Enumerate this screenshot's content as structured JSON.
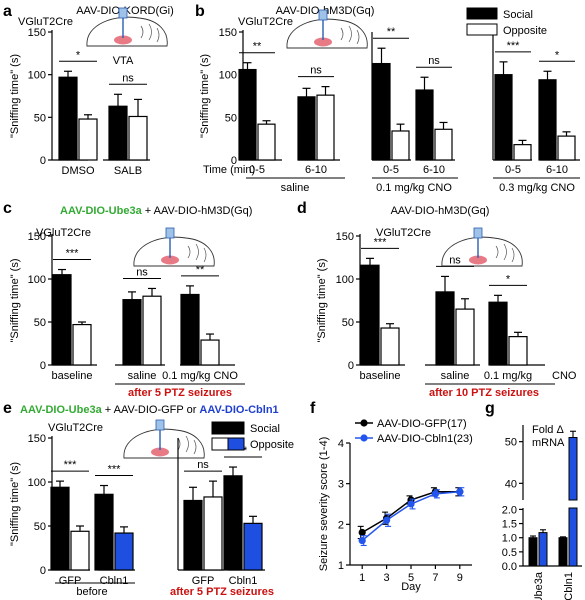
{
  "colors": {
    "social": "#000000",
    "opposite": "#ffffff",
    "cbln1": "#1f4fe0",
    "sig_red": "#cc1111",
    "green": "#33aa33",
    "blue_text": "#1f3fd0",
    "brain_region": "#e87a86",
    "gfp_line": "#000000",
    "cbln1_line": "#2255ee"
  },
  "legend_b": {
    "social": "Social",
    "opposite": "Opposite"
  },
  "legend_e": {
    "social": "Social",
    "opposite": "Opposite"
  },
  "panels": {
    "a": {
      "letter": "a",
      "title": "AAV-DIO-KORD(Gi)",
      "subtitle": "VGluT2Cre",
      "region": "VTA"
    },
    "b": {
      "letter": "b",
      "title": "AAV-DIO-hM3D(Gq)",
      "subtitle": "VGluT2Cre",
      "time_label": "Time (min)"
    },
    "c": {
      "letter": "c",
      "title_green": "AAV-DIO-Ube3a",
      "title_rest": " + AAV-DIO-hM3D(Gq)",
      "subtitle": "VGluT2Cre",
      "red_note": "after 5 PTZ seizures"
    },
    "d": {
      "letter": "d",
      "title": "AAV-DIO-hM3D(Gq)",
      "subtitle": "VGluT2Cre",
      "red_note": "after 10 PTZ seizures"
    },
    "e": {
      "letter": "e",
      "title_green": "AAV-DIO-Ube3a",
      "title_mid": " + AAV-DIO-GFP or ",
      "title_blue": "AAV-DIO-Cbln1",
      "subtitle": "VGluT2Cre",
      "group_before": "before",
      "red_note": "after 5 PTZ seizures"
    },
    "f": {
      "letter": "f"
    },
    "g": {
      "letter": "g",
      "inset": [
        "Fold Δ",
        "mRNA"
      ]
    }
  },
  "chart_data": [
    {
      "id": "a",
      "type": "bar",
      "ylabel": "\"Sniffing time\" (s)",
      "ylim": [
        0,
        150
      ],
      "yticks": [
        0,
        50,
        100,
        150
      ],
      "categories": [
        "DMSO",
        "SALB"
      ],
      "series": [
        {
          "name": "Social",
          "values": [
            97,
            63
          ],
          "err": [
            7,
            14
          ]
        },
        {
          "name": "Opposite",
          "values": [
            48,
            51
          ],
          "err": [
            5,
            20
          ]
        }
      ],
      "sig": [
        "*",
        "ns"
      ]
    },
    {
      "id": "b",
      "type": "bar",
      "ylabel": "\"Sniffing time\" (s)",
      "ylim": [
        0,
        150
      ],
      "yticks": [
        0,
        50,
        100,
        150
      ],
      "categories": [
        "0-5",
        "6-10",
        "0-5",
        "6-10",
        "0-5",
        "6-10"
      ],
      "group_labels": [
        "saline",
        "0.1 mg/kg CNO",
        "0.3 mg/kg CNO"
      ],
      "series": [
        {
          "name": "Social",
          "values": [
            106,
            74,
            113,
            82,
            100,
            94
          ],
          "err": [
            8,
            10,
            18,
            15,
            15,
            10
          ]
        },
        {
          "name": "Opposite",
          "values": [
            42,
            76,
            34,
            36,
            18,
            28
          ],
          "err": [
            4,
            10,
            8,
            8,
            5,
            5
          ]
        }
      ],
      "sig": [
        "**",
        "ns",
        "**",
        "ns",
        "***",
        "*"
      ]
    },
    {
      "id": "c",
      "type": "bar",
      "ylabel": "\"Sniffing time\" (s)",
      "ylim": [
        0,
        150
      ],
      "yticks": [
        0,
        50,
        100,
        150
      ],
      "categories": [
        "baseline",
        "saline",
        "0.1 mg/kg CNO"
      ],
      "unit_after": "",
      "series": [
        {
          "name": "Social",
          "values": [
            105,
            76,
            82
          ],
          "err": [
            6,
            9,
            10
          ]
        },
        {
          "name": "Opposite",
          "values": [
            47,
            80,
            29
          ],
          "err": [
            3,
            9,
            7
          ]
        }
      ],
      "sig": [
        "***",
        "ns",
        "**"
      ]
    },
    {
      "id": "d",
      "type": "bar",
      "ylabel": "\"Sniffing time\" (s)",
      "ylim": [
        0,
        150
      ],
      "yticks": [
        0,
        50,
        100,
        150
      ],
      "categories": [
        "baseline",
        "saline",
        "0.1 mg/kg"
      ],
      "unit_after": "CNO",
      "series": [
        {
          "name": "Social",
          "values": [
            116,
            85,
            73
          ],
          "err": [
            8,
            18,
            8
          ]
        },
        {
          "name": "Opposite",
          "values": [
            43,
            65,
            33
          ],
          "err": [
            5,
            12,
            5
          ]
        }
      ],
      "sig": [
        "***",
        "ns",
        "*"
      ]
    },
    {
      "id": "e",
      "type": "bar",
      "ylabel": "\"Sniffing time\" (s)",
      "ylim": [
        0,
        150
      ],
      "yticks": [
        0,
        50,
        100,
        150
      ],
      "categories": [
        "GFP",
        "Cbln1",
        "GFP",
        "Cbln1"
      ],
      "series": [
        {
          "name": "Social",
          "values": [
            94,
            86,
            79,
            107
          ],
          "err": [
            7,
            10,
            15,
            10
          ]
        },
        {
          "name": "Opposite",
          "values": [
            44,
            42,
            83,
            53
          ],
          "err": [
            6,
            7,
            18,
            8
          ]
        }
      ],
      "sig": [
        "***",
        "***",
        "ns",
        "**"
      ]
    },
    {
      "id": "f",
      "type": "line",
      "xlabel": "Day",
      "ylabel": "Seizure severity score (1-4)",
      "xlim": [
        0,
        10
      ],
      "ylim": [
        1,
        4
      ],
      "xticks": [
        1,
        3,
        5,
        7,
        9
      ],
      "yticks": [
        1,
        2,
        3,
        4
      ],
      "x": [
        1,
        3,
        5,
        7,
        9
      ],
      "series": [
        {
          "name": "AAV-DIO-GFP(17)",
          "values": [
            1.8,
            2.15,
            2.6,
            2.8,
            2.8
          ],
          "err": [
            0.15,
            0.15,
            0.1,
            0.1,
            0.1
          ]
        },
        {
          "name": "AAV-DIO-Cbln1(23)",
          "values": [
            1.6,
            2.1,
            2.5,
            2.75,
            2.8
          ],
          "err": [
            0.12,
            0.15,
            0.12,
            0.1,
            0.1
          ]
        }
      ]
    },
    {
      "id": "g",
      "type": "bar",
      "categories": [
        "Ube3a",
        "Cbln1"
      ],
      "yticks_lower": [
        0.0,
        0.5,
        1.0,
        1.5,
        2.0
      ],
      "yticks_upper": [
        40,
        50
      ],
      "series": [
        {
          "name": "GFP",
          "values": [
            1.0,
            1.0
          ],
          "err": [
            0.06,
            0.03
          ]
        },
        {
          "name": "Cbln1",
          "values": [
            1.18,
            51
          ],
          "err": [
            0.1,
            1.5
          ]
        }
      ]
    }
  ]
}
